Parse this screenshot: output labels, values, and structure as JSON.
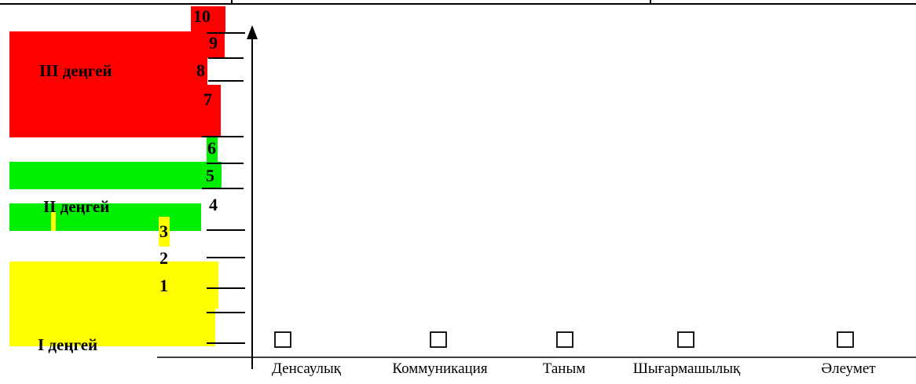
{
  "colors": {
    "level_1": "#ffff00",
    "level_2": "#00ee00",
    "level_3": "#ff0000",
    "axis": "#000000",
    "background": "#ffffff"
  },
  "chart_data": {
    "type": "bar",
    "orientation": "vertical",
    "grid": false,
    "legend": "none",
    "y_ticks": [
      "1",
      "2",
      "3",
      "4",
      "5",
      "6",
      "7",
      "8",
      "9",
      "10"
    ],
    "ylim": [
      0,
      10
    ],
    "categories": [
      "Денсаулық",
      "Коммуникация",
      "Таным",
      "Шығармашылық",
      "Әлеумет"
    ],
    "checkbox_symbol": "☐",
    "level_bands": [
      {
        "label": "І деңгей",
        "from": 0,
        "to": 3,
        "color": "#ffff00"
      },
      {
        "label": "ІІ деңгей",
        "from": 3,
        "to": 6,
        "color": "#00ee00"
      },
      {
        "label": "ІІІ деңгей",
        "from": 6,
        "to": 10,
        "color": "#ff0000"
      }
    ],
    "values": [
      null,
      null,
      null,
      null,
      null
    ]
  }
}
